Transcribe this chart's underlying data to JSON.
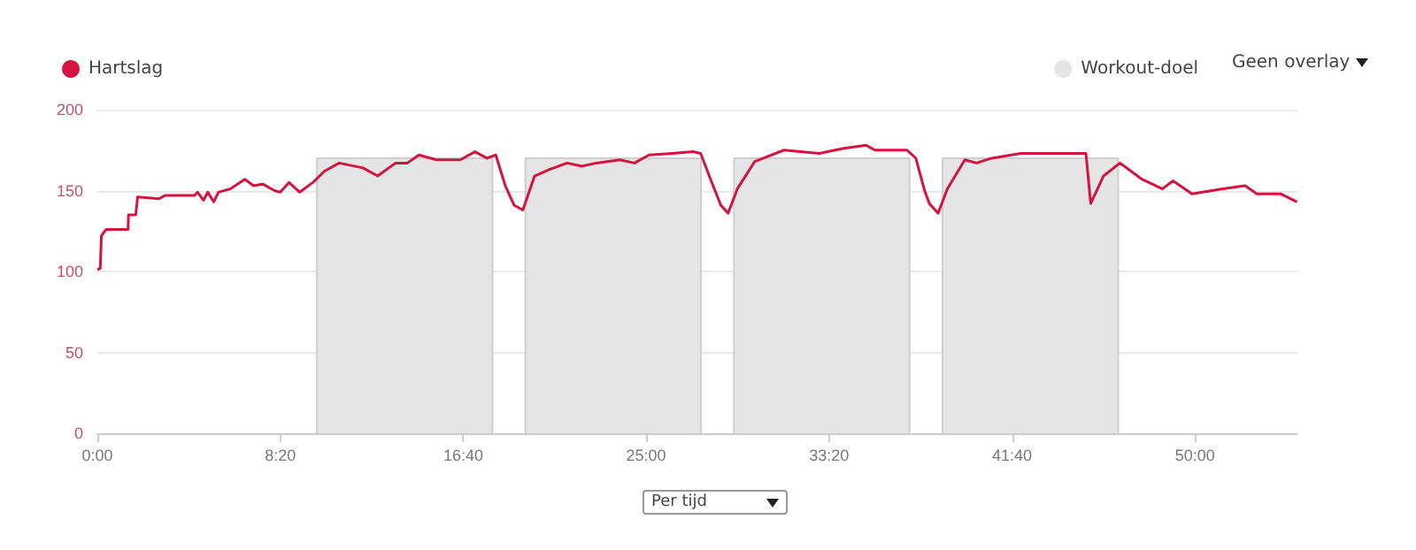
{
  "chart_data": {
    "type": "line",
    "legend": "top",
    "grid": "y",
    "marker": "none",
    "line_style": "solid",
    "xlim": [
      0,
      3280
    ],
    "xticks": [
      {
        "value": 0,
        "label": "0:00"
      },
      {
        "value": 500,
        "label": "8:20"
      },
      {
        "value": 1000,
        "label": "16:40"
      },
      {
        "value": 1500,
        "label": "25:00"
      },
      {
        "value": 2000,
        "label": "33:20"
      },
      {
        "value": 2500,
        "label": "41:40"
      },
      {
        "value": 3000,
        "label": "50:00"
      }
    ],
    "ylim": [
      0,
      200
    ],
    "yticks": [
      0,
      50,
      100,
      150,
      200
    ],
    "annotations": [
      "Geen overlay",
      "Per tijd"
    ],
    "series": [
      {
        "name": "Hartslag",
        "type": "line",
        "color": "#d4143f",
        "x": [
          0,
          8,
          11,
          24,
          84,
          85,
          105,
          110,
          169,
          185,
          266,
          274,
          290,
          302,
          318,
          331,
          363,
          403,
          427,
          452,
          484,
          500,
          524,
          553,
          589,
          621,
          661,
          726,
          766,
          815,
          847,
          879,
          927,
          992,
          1032,
          1065,
          1089,
          1115,
          1139,
          1163,
          1195,
          1236,
          1284,
          1324,
          1364,
          1428,
          1468,
          1508,
          1572,
          1628,
          1649,
          1676,
          1704,
          1724,
          1749,
          1797,
          1877,
          1973,
          2037,
          2101,
          2125,
          2213,
          2237,
          2261,
          2274,
          2298,
          2323,
          2371,
          2403,
          2444,
          2524,
          2605,
          2702,
          2715,
          2750,
          2795,
          2855,
          2911,
          2940,
          2992,
          3073,
          3137,
          3169,
          3234,
          3279
        ],
        "values": [
          101,
          102,
          122,
          126,
          126,
          135,
          135,
          146,
          145,
          147,
          147,
          149,
          144,
          149,
          143,
          149,
          151,
          157,
          153,
          154,
          150,
          149,
          155,
          149,
          155,
          162,
          167,
          164,
          159,
          167,
          167,
          172,
          169,
          169,
          174,
          170,
          172,
          153,
          141,
          138,
          159,
          163,
          167,
          165,
          167,
          169,
          167,
          172,
          173,
          174,
          173,
          157,
          141,
          136,
          151,
          168,
          175,
          173,
          176,
          178,
          175,
          175,
          170,
          150,
          142,
          136,
          151,
          169,
          167,
          170,
          173,
          173,
          173,
          142,
          159,
          167,
          157,
          151,
          156,
          148,
          151,
          153,
          148,
          148,
          143
        ]
      },
      {
        "name": "Workout-doel",
        "type": "area",
        "color": "#e5e5e5",
        "x": [
          600,
          600,
          1080,
          1080,
          1125,
          1170,
          1170,
          1650,
          1650,
          1695,
          1740,
          1740,
          2220,
          2220,
          2265,
          2310,
          2310,
          2790,
          2790
        ],
        "values": [
          0,
          170,
          170,
          0,
          null,
          0,
          170,
          170,
          0,
          null,
          0,
          170,
          170,
          0,
          null,
          0,
          170,
          170,
          0
        ]
      }
    ]
  }
}
